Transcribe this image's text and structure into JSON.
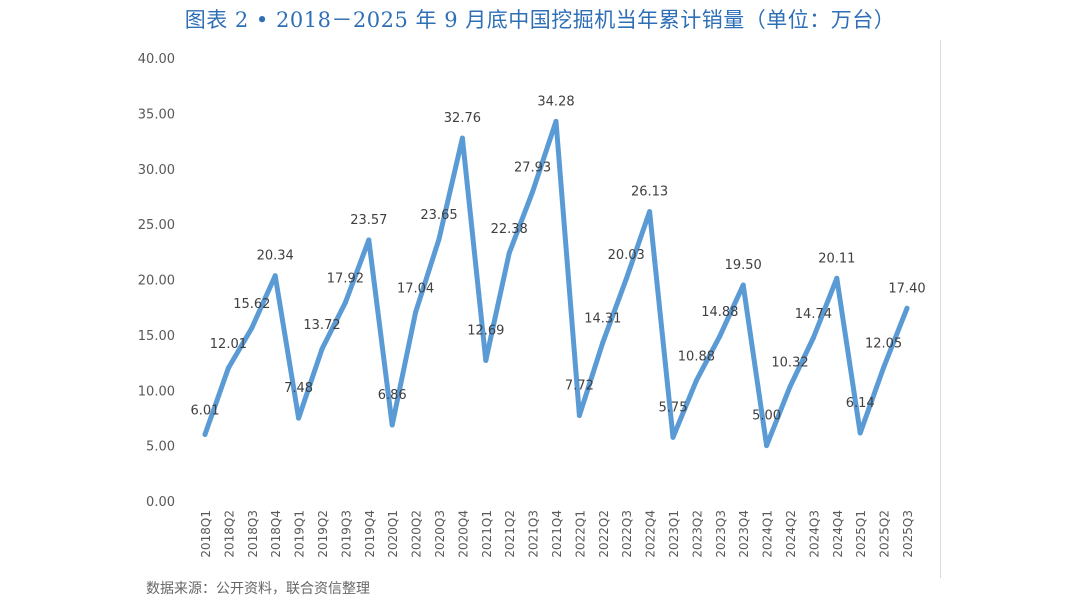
{
  "title": "图表 2 • 2018－2025 年 9 月底中国挖掘机当年累计销量（单位：万台）",
  "source": "数据来源：公开资料，联合资信整理",
  "chart_data": {
    "type": "line",
    "title": "图表 2 • 2018－2025 年 9 月底中国挖掘机当年累计销量（单位：万台）",
    "xlabel": "",
    "ylabel": "",
    "ylim": [
      0,
      40
    ],
    "yticks": [
      "0.00",
      "5.00",
      "10.00",
      "15.00",
      "20.00",
      "25.00",
      "30.00",
      "35.00",
      "40.00"
    ],
    "grid": false,
    "legend": "none",
    "line_color": "#5b9bd5",
    "categories": [
      "2018Q1",
      "2018Q2",
      "2018Q3",
      "2018Q4",
      "2019Q1",
      "2019Q2",
      "2019Q3",
      "2019Q4",
      "2020Q1",
      "2020Q2",
      "2020Q3",
      "2020Q4",
      "2021Q1",
      "2021Q2",
      "2021Q3",
      "2021Q4",
      "2022Q1",
      "2022Q2",
      "2022Q3",
      "2022Q4",
      "2023Q1",
      "2023Q2",
      "2023Q3",
      "2023Q4",
      "2024Q1",
      "2024Q2",
      "2024Q3",
      "2024Q4",
      "2025Q1",
      "2025Q2",
      "2025Q3"
    ],
    "values": [
      6.01,
      12.01,
      15.62,
      20.34,
      7.48,
      13.72,
      17.92,
      23.57,
      6.86,
      17.04,
      23.65,
      32.76,
      12.69,
      22.38,
      27.93,
      34.28,
      7.72,
      14.31,
      20.03,
      26.13,
      5.75,
      10.88,
      14.88,
      19.5,
      5.0,
      10.32,
      14.74,
      20.11,
      6.14,
      12.05,
      17.4
    ],
    "labels": [
      "6.01",
      "12.01",
      "15.62",
      "20.34",
      "7.48",
      "13.72",
      "17.92",
      "23.57",
      "6.86",
      "17.04",
      "23.65",
      "32.76",
      "12.69",
      "22.38",
      "27.93",
      "34.28",
      "7.72",
      "14.31",
      "20.03",
      "26.13",
      "5.75",
      "10.88",
      "14.88",
      "19.50",
      "5.00",
      "10.32",
      "14.74",
      "20.11",
      "6.14",
      "12.05",
      "17.40"
    ]
  }
}
